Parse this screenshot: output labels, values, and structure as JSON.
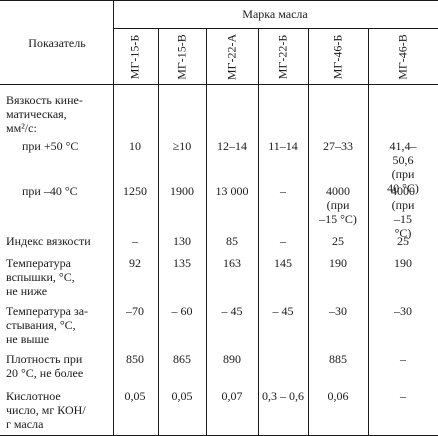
{
  "header": {
    "indicator": "Показатель",
    "brand_group": "Марка масла",
    "grades": [
      "МГ-15-Б",
      "МГ-15-В",
      "МГ-22-А",
      "МГ-22-Б",
      "МГ-46-Б",
      "МГ-46-В"
    ]
  },
  "rows": {
    "viscosity_label": "Вязкость кине-\nматическая,\nмм²/с:",
    "plus50_label": "при +50 °С",
    "plus50": [
      "10",
      "≥10",
      "12–14",
      "11–14",
      "27–33",
      "41,4–50,6\n(при\n40 °С)"
    ],
    "minus40_label": "при –40 °С",
    "minus40": [
      "1250",
      "1900",
      "13 000",
      "–",
      "4000\n(при\n–15 °С)",
      "4000\n(при\n–15 °С)"
    ],
    "index_label": "Индекс вязкости",
    "index": [
      "–",
      "130",
      "85",
      "–",
      "25",
      "25"
    ],
    "flash_label": "Температура\nвспышки, °С,\nне ниже",
    "flash": [
      "92",
      "135",
      "163",
      "145",
      "190",
      "190"
    ],
    "pour_label": "Температура за-\nстывания, °С,\nне выше",
    "pour": [
      "–70",
      "– 60",
      "– 45",
      "– 45",
      "–30",
      "–30"
    ],
    "density_label": "Плотность при\n20 °С, не более",
    "density": [
      "850",
      "865",
      "890",
      "",
      "885",
      "–"
    ],
    "acid_label": "Кислотное\nчисло, мг КОН/\nг масла",
    "acid": [
      "0,05",
      "0,05",
      "0,07",
      "0,3 – 0,6",
      "0,06",
      "–"
    ]
  }
}
